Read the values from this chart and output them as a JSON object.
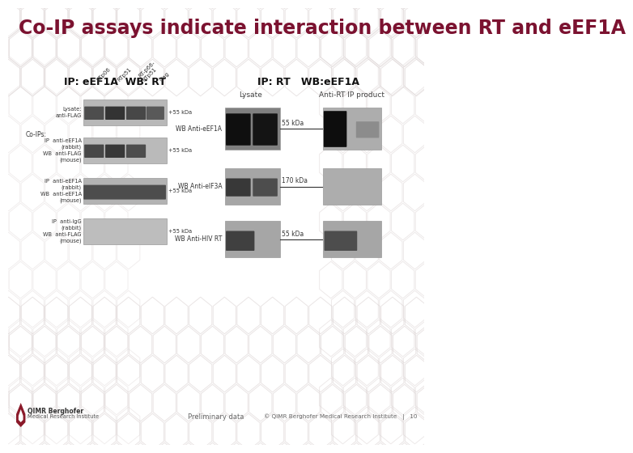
{
  "title": "Co-IP assays indicate interaction between RT and eEF1A",
  "title_color": "#7B1230",
  "title_fontsize": 17,
  "bg_color": "#FFFFFF",
  "left_panel_title": "IP: eEF1A  WB: RT",
  "right_panel_title": "IP: RT   WB:eEF1A",
  "left_col_labels": [
    "RTp06",
    "RTp51",
    "RT-p66-\nRTp51",
    "Gag"
  ],
  "right_wb_labels": [
    "WB Anti-eEF1A",
    "WB Anti-eIF3A",
    "WB Anti-HIV RT"
  ],
  "right_size_labels": [
    "55 kDa",
    "170 kDa",
    "55 kDa"
  ],
  "right_top_labels": [
    "Lysate",
    "Anti-RT IP product"
  ],
  "footer_left": "QIMR Berghofer\nMedical Research Institute",
  "footer_center": "Preliminary data",
  "footer_right": "© QIMR Berghofer Medical Research Institute   |   10",
  "footer_color": "#666666",
  "hex_color": "#E0D8D8"
}
